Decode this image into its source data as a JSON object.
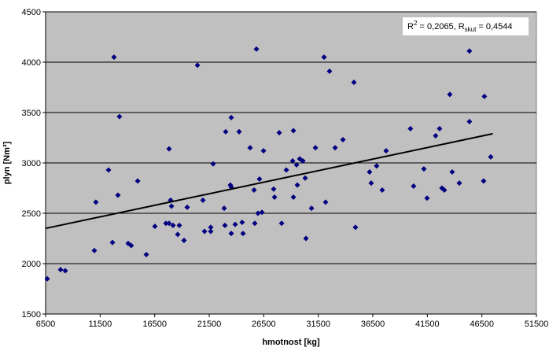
{
  "chart_data": {
    "type": "scatter",
    "xlabel": "hmotnost [kg]",
    "ylabel": "plyn [Nm³]",
    "annotation": [
      "R",
      "2",
      " = 0,2065, R",
      "skut",
      " = 0,4544"
    ],
    "xlim": [
      6500,
      51500
    ],
    "xticks": [
      6500,
      11500,
      16500,
      21500,
      26500,
      31500,
      36500,
      41500,
      46500,
      51500
    ],
    "ylim": [
      1500,
      4500
    ],
    "yticks": [
      1500,
      2000,
      2500,
      3000,
      3500,
      4000,
      4500
    ],
    "grid": true,
    "color": "#000080",
    "x": [
      6650,
      7870,
      8300,
      10970,
      11110,
      12270,
      12630,
      12770,
      13130,
      13270,
      14070,
      14350,
      14940,
      15730,
      16520,
      17530,
      17820,
      17820,
      17960,
      18040,
      18180,
      18610,
      18760,
      19190,
      19480,
      20420,
      20920,
      21070,
      21640,
      21640,
      21860,
      22870,
      22940,
      23010,
      23440,
      23520,
      23520,
      23520,
      23880,
      24240,
      24520,
      24600,
      25250,
      25610,
      25680,
      25830,
      25970,
      26110,
      26330,
      26480,
      27410,
      27490,
      27920,
      28140,
      28570,
      29150,
      29220,
      29220,
      29510,
      29580,
      29800,
      30090,
      30300,
      30370,
      30880,
      31240,
      32030,
      32170,
      32530,
      33040,
      33760,
      34770,
      34910,
      36200,
      36350,
      36850,
      37360,
      37720,
      39950,
      40240,
      41180,
      41470,
      42260,
      42620,
      42840,
      43060,
      43560,
      43780,
      44430,
      45360,
      45360,
      46660,
      46730,
      47310
    ],
    "values": [
      1850,
      1940,
      1930,
      2130,
      2610,
      2930,
      2210,
      4050,
      2680,
      3460,
      2200,
      2180,
      2820,
      2090,
      2370,
      2400,
      3140,
      2400,
      2630,
      2570,
      2380,
      2290,
      2380,
      2230,
      2560,
      3970,
      2630,
      2320,
      2360,
      2320,
      2990,
      2550,
      2380,
      3310,
      2780,
      2760,
      3450,
      2300,
      2390,
      3310,
      2410,
      2300,
      3150,
      2730,
      2400,
      4130,
      2500,
      2840,
      2510,
      3120,
      2740,
      2660,
      3300,
      2400,
      2930,
      3020,
      3320,
      2660,
      2980,
      2780,
      3040,
      3020,
      2850,
      2250,
      2550,
      3150,
      4050,
      2610,
      3910,
      3150,
      3230,
      3800,
      2360,
      2910,
      2800,
      2970,
      2730,
      3120,
      3340,
      2770,
      2940,
      2650,
      3270,
      3340,
      2750,
      2730,
      3680,
      2910,
      2800,
      4110,
      3410,
      2820,
      3660,
      3060
    ],
    "trendline": {
      "color": "#000000",
      "x": [
        6500,
        47500
      ],
      "y": [
        2350,
        3290
      ]
    }
  }
}
